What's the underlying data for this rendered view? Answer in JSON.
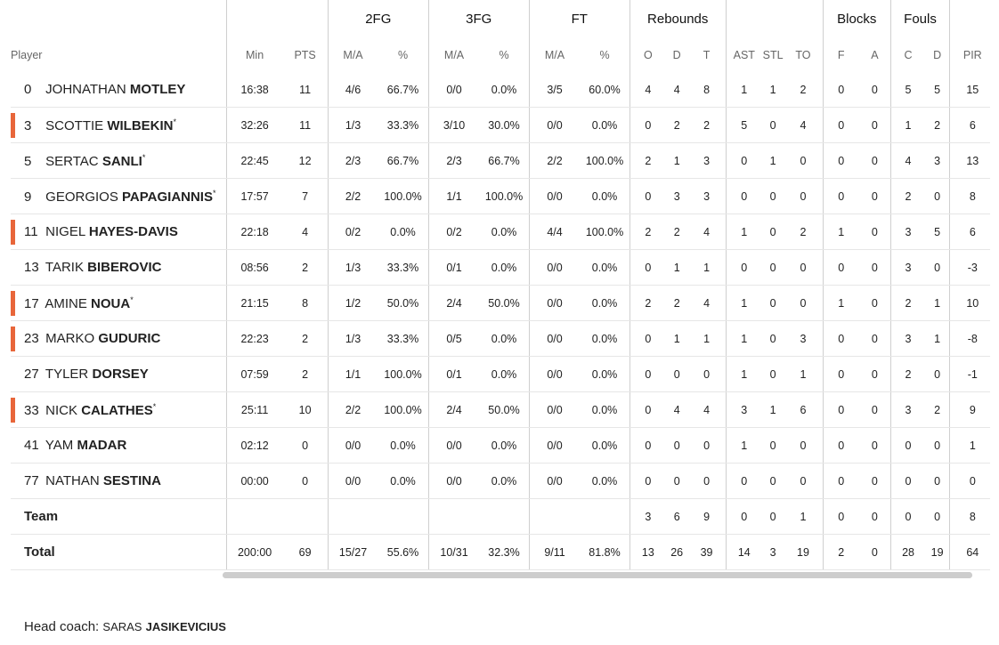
{
  "groups": {
    "fg2": "2FG",
    "fg3": "3FG",
    "ft": "FT",
    "reb": "Rebounds",
    "blk": "Blocks",
    "fouls": "Fouls"
  },
  "cols": {
    "player": "Player",
    "min": "Min",
    "pts": "PTS",
    "fg2_ma": "M/A",
    "fg2_pct": "%",
    "fg3_ma": "M/A",
    "fg3_pct": "%",
    "ft_ma": "M/A",
    "ft_pct": "%",
    "o": "O",
    "d": "D",
    "t": "T",
    "ast": "AST",
    "stl": "STL",
    "to": "TO",
    "bf": "F",
    "ba": "A",
    "fc": "C",
    "fd": "D",
    "pir": "PIR",
    "pm": "+/"
  },
  "players": [
    {
      "num": "0",
      "first": "JOHNATHAN",
      "last": "MOTLEY",
      "star": "",
      "highlight": false,
      "min": "16:38",
      "pts": "11",
      "fg2_ma": "4/6",
      "fg2_pct": "66.7%",
      "fg3_ma": "0/0",
      "fg3_pct": "0.0%",
      "ft_ma": "3/5",
      "ft_pct": "60.0%",
      "o": "4",
      "d": "4",
      "t": "8",
      "ast": "1",
      "stl": "1",
      "to": "2",
      "bf": "0",
      "ba": "0",
      "fc": "5",
      "fd": "5",
      "pir": "15"
    },
    {
      "num": "3",
      "first": "SCOTTIE",
      "last": "WILBEKIN",
      "star": "*",
      "highlight": true,
      "min": "32:26",
      "pts": "11",
      "fg2_ma": "1/3",
      "fg2_pct": "33.3%",
      "fg3_ma": "3/10",
      "fg3_pct": "30.0%",
      "ft_ma": "0/0",
      "ft_pct": "0.0%",
      "o": "0",
      "d": "2",
      "t": "2",
      "ast": "5",
      "stl": "0",
      "to": "4",
      "bf": "0",
      "ba": "0",
      "fc": "1",
      "fd": "2",
      "pir": "6"
    },
    {
      "num": "5",
      "first": "SERTAC",
      "last": "SANLI",
      "star": "*",
      "highlight": false,
      "min": "22:45",
      "pts": "12",
      "fg2_ma": "2/3",
      "fg2_pct": "66.7%",
      "fg3_ma": "2/3",
      "fg3_pct": "66.7%",
      "ft_ma": "2/2",
      "ft_pct": "100.0%",
      "o": "2",
      "d": "1",
      "t": "3",
      "ast": "0",
      "stl": "1",
      "to": "0",
      "bf": "0",
      "ba": "0",
      "fc": "4",
      "fd": "3",
      "pir": "13"
    },
    {
      "num": "9",
      "first": "GEORGIOS",
      "last": "PAPAGIANNIS",
      "star": "*",
      "highlight": false,
      "min": "17:57",
      "pts": "7",
      "fg2_ma": "2/2",
      "fg2_pct": "100.0%",
      "fg3_ma": "1/1",
      "fg3_pct": "100.0%",
      "ft_ma": "0/0",
      "ft_pct": "0.0%",
      "o": "0",
      "d": "3",
      "t": "3",
      "ast": "0",
      "stl": "0",
      "to": "0",
      "bf": "0",
      "ba": "0",
      "fc": "2",
      "fd": "0",
      "pir": "8"
    },
    {
      "num": "11",
      "first": "NIGEL",
      "last": "HAYES-DAVIS",
      "star": "",
      "highlight": true,
      "min": "22:18",
      "pts": "4",
      "fg2_ma": "0/2",
      "fg2_pct": "0.0%",
      "fg3_ma": "0/2",
      "fg3_pct": "0.0%",
      "ft_ma": "4/4",
      "ft_pct": "100.0%",
      "o": "2",
      "d": "2",
      "t": "4",
      "ast": "1",
      "stl": "0",
      "to": "2",
      "bf": "1",
      "ba": "0",
      "fc": "3",
      "fd": "5",
      "pir": "6"
    },
    {
      "num": "13",
      "first": "TARIK",
      "last": "BIBEROVIC",
      "star": "",
      "highlight": false,
      "min": "08:56",
      "pts": "2",
      "fg2_ma": "1/3",
      "fg2_pct": "33.3%",
      "fg3_ma": "0/1",
      "fg3_pct": "0.0%",
      "ft_ma": "0/0",
      "ft_pct": "0.0%",
      "o": "0",
      "d": "1",
      "t": "1",
      "ast": "0",
      "stl": "0",
      "to": "0",
      "bf": "0",
      "ba": "0",
      "fc": "3",
      "fd": "0",
      "pir": "-3"
    },
    {
      "num": "17",
      "first": "AMINE",
      "last": "NOUA",
      "star": "*",
      "highlight": true,
      "min": "21:15",
      "pts": "8",
      "fg2_ma": "1/2",
      "fg2_pct": "50.0%",
      "fg3_ma": "2/4",
      "fg3_pct": "50.0%",
      "ft_ma": "0/0",
      "ft_pct": "0.0%",
      "o": "2",
      "d": "2",
      "t": "4",
      "ast": "1",
      "stl": "0",
      "to": "0",
      "bf": "1",
      "ba": "0",
      "fc": "2",
      "fd": "1",
      "pir": "10"
    },
    {
      "num": "23",
      "first": "MARKO",
      "last": "GUDURIC",
      "star": "",
      "highlight": true,
      "min": "22:23",
      "pts": "2",
      "fg2_ma": "1/3",
      "fg2_pct": "33.3%",
      "fg3_ma": "0/5",
      "fg3_pct": "0.0%",
      "ft_ma": "0/0",
      "ft_pct": "0.0%",
      "o": "0",
      "d": "1",
      "t": "1",
      "ast": "1",
      "stl": "0",
      "to": "3",
      "bf": "0",
      "ba": "0",
      "fc": "3",
      "fd": "1",
      "pir": "-8"
    },
    {
      "num": "27",
      "first": "TYLER",
      "last": "DORSEY",
      "star": "",
      "highlight": false,
      "min": "07:59",
      "pts": "2",
      "fg2_ma": "1/1",
      "fg2_pct": "100.0%",
      "fg3_ma": "0/1",
      "fg3_pct": "0.0%",
      "ft_ma": "0/0",
      "ft_pct": "0.0%",
      "o": "0",
      "d": "0",
      "t": "0",
      "ast": "1",
      "stl": "0",
      "to": "1",
      "bf": "0",
      "ba": "0",
      "fc": "2",
      "fd": "0",
      "pir": "-1"
    },
    {
      "num": "33",
      "first": "NICK",
      "last": "CALATHES",
      "star": "*",
      "highlight": true,
      "min": "25:11",
      "pts": "10",
      "fg2_ma": "2/2",
      "fg2_pct": "100.0%",
      "fg3_ma": "2/4",
      "fg3_pct": "50.0%",
      "ft_ma": "0/0",
      "ft_pct": "0.0%",
      "o": "0",
      "d": "4",
      "t": "4",
      "ast": "3",
      "stl": "1",
      "to": "6",
      "bf": "0",
      "ba": "0",
      "fc": "3",
      "fd": "2",
      "pir": "9"
    },
    {
      "num": "41",
      "first": "YAM",
      "last": "MADAR",
      "star": "",
      "highlight": false,
      "min": "02:12",
      "pts": "0",
      "fg2_ma": "0/0",
      "fg2_pct": "0.0%",
      "fg3_ma": "0/0",
      "fg3_pct": "0.0%",
      "ft_ma": "0/0",
      "ft_pct": "0.0%",
      "o": "0",
      "d": "0",
      "t": "0",
      "ast": "1",
      "stl": "0",
      "to": "0",
      "bf": "0",
      "ba": "0",
      "fc": "0",
      "fd": "0",
      "pir": "1"
    },
    {
      "num": "77",
      "first": "NATHAN",
      "last": "SESTINA",
      "star": "",
      "highlight": false,
      "min": "00:00",
      "pts": "0",
      "fg2_ma": "0/0",
      "fg2_pct": "0.0%",
      "fg3_ma": "0/0",
      "fg3_pct": "0.0%",
      "ft_ma": "0/0",
      "ft_pct": "0.0%",
      "o": "0",
      "d": "0",
      "t": "0",
      "ast": "0",
      "stl": "0",
      "to": "0",
      "bf": "0",
      "ba": "0",
      "fc": "0",
      "fd": "0",
      "pir": "0"
    }
  ],
  "team": {
    "label": "Team",
    "min": "",
    "pts": "",
    "fg2_ma": "",
    "fg2_pct": "",
    "fg3_ma": "",
    "fg3_pct": "",
    "ft_ma": "",
    "ft_pct": "",
    "o": "3",
    "d": "6",
    "t": "9",
    "ast": "0",
    "stl": "0",
    "to": "1",
    "bf": "0",
    "ba": "0",
    "fc": "0",
    "fd": "0",
    "pir": "8"
  },
  "total": {
    "label": "Total",
    "min": "200:00",
    "pts": "69",
    "fg2_ma": "15/27",
    "fg2_pct": "55.6%",
    "fg3_ma": "10/31",
    "fg3_pct": "32.3%",
    "ft_ma": "9/11",
    "ft_pct": "81.8%",
    "o": "13",
    "d": "26",
    "t": "39",
    "ast": "14",
    "stl": "3",
    "to": "19",
    "bf": "2",
    "ba": "0",
    "fc": "28",
    "fd": "19",
    "pir": "64"
  },
  "coach": {
    "label": "Head coach:",
    "first": "SARAS",
    "last": "JASIKEVICIUS"
  },
  "colors": {
    "starter_bar": "#e8663a"
  }
}
